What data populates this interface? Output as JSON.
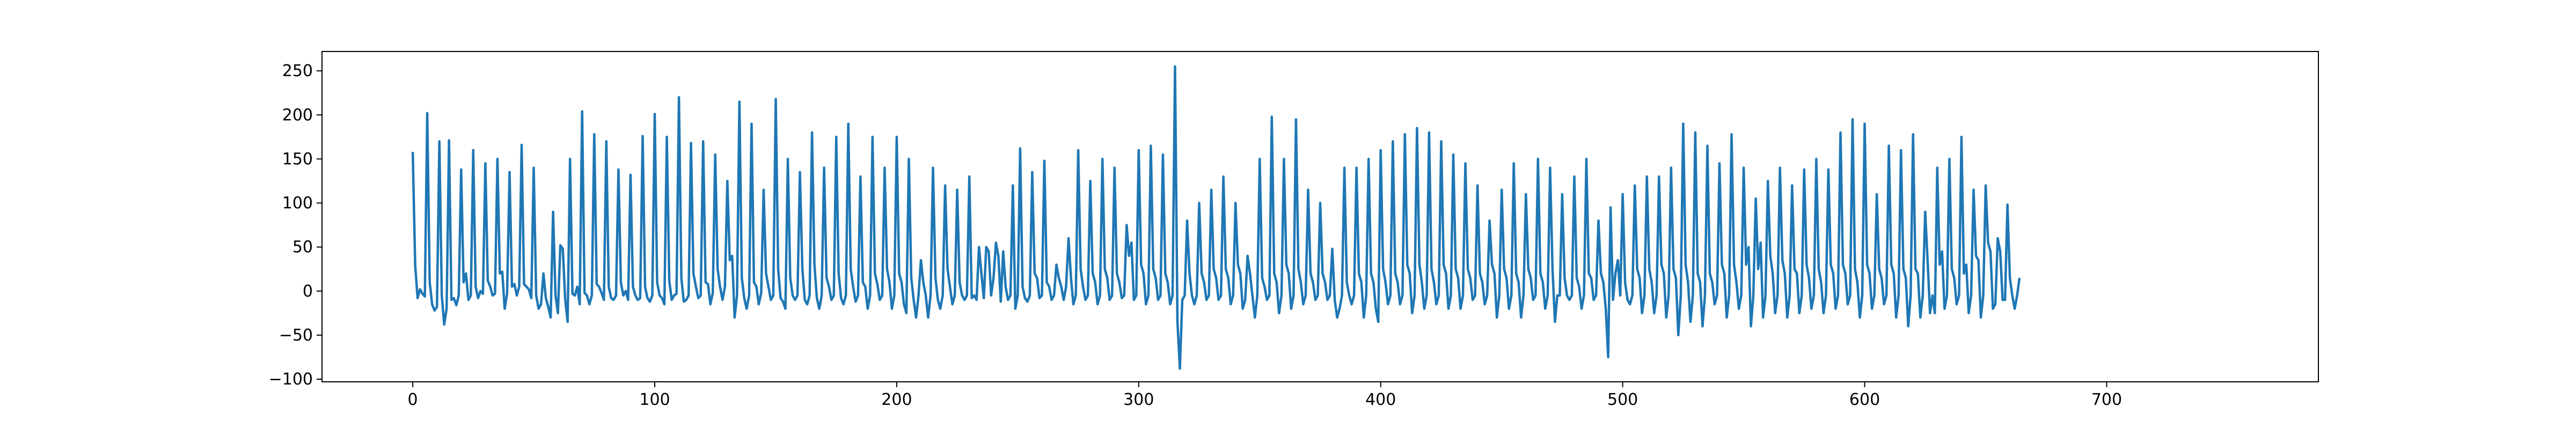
{
  "chart_data": {
    "type": "line",
    "title": "",
    "xlabel": "",
    "ylabel": "",
    "xlim": [
      -37.5,
      787.5
    ],
    "ylim": [
      -103,
      272
    ],
    "xticks": [
      0,
      100,
      200,
      300,
      400,
      500,
      600,
      700
    ],
    "yticks": [
      -100,
      -50,
      0,
      50,
      100,
      150,
      200,
      250
    ],
    "grid": false,
    "legend": "none",
    "colors": {
      "line": "#1f77b4",
      "axes": "#000000",
      "background": "#ffffff"
    },
    "series": [
      {
        "values": [
          158,
          30,
          -8,
          2,
          -3,
          -6,
          202,
          10,
          -15,
          -22,
          -18,
          170,
          -5,
          -38,
          -20,
          171,
          -10,
          -8,
          -16,
          -5,
          138,
          10,
          20,
          -10,
          -5,
          160,
          5,
          -8,
          0,
          -3,
          145,
          12,
          5,
          -5,
          -3,
          150,
          20,
          22,
          -20,
          -3,
          135,
          5,
          8,
          -5,
          5,
          166,
          8,
          5,
          2,
          -8,
          140,
          -5,
          -20,
          -15,
          20,
          -8,
          -18,
          -30,
          90,
          -5,
          -25,
          52,
          48,
          -10,
          -35,
          150,
          -3,
          -5,
          5,
          -15,
          204,
          -2,
          -5,
          -15,
          -5,
          178,
          8,
          5,
          -2,
          -10,
          170,
          5,
          -8,
          -10,
          -5,
          138,
          10,
          -5,
          0,
          -10,
          132,
          5,
          -5,
          -10,
          -8,
          176,
          5,
          -8,
          -12,
          -5,
          201,
          10,
          -5,
          -8,
          -15,
          175,
          12,
          -10,
          -5,
          -3,
          220,
          15,
          -12,
          -10,
          -5,
          168,
          20,
          5,
          -8,
          -5,
          170,
          10,
          8,
          -15,
          -2,
          155,
          25,
          5,
          -10,
          5,
          125,
          35,
          40,
          -30,
          -5,
          215,
          15,
          -8,
          -20,
          -5,
          190,
          10,
          5,
          -15,
          -2,
          115,
          20,
          5,
          -10,
          -5,
          218,
          25,
          -8,
          -12,
          -20,
          150,
          15,
          -5,
          -10,
          -5,
          135,
          25,
          -10,
          -15,
          -5,
          180,
          30,
          -8,
          -20,
          -5,
          140,
          15,
          5,
          -10,
          -5,
          175,
          20,
          -8,
          -15,
          -5,
          190,
          25,
          5,
          -12,
          -5,
          130,
          10,
          5,
          -20,
          -5,
          175,
          20,
          8,
          -10,
          -5,
          140,
          25,
          10,
          -20,
          -5,
          175,
          20,
          10,
          -15,
          -25,
          150,
          15,
          -10,
          -30,
          -5,
          35,
          10,
          -5,
          -30,
          -5,
          140,
          15,
          -10,
          -20,
          -5,
          120,
          25,
          5,
          -15,
          -5,
          115,
          10,
          -5,
          -10,
          -5,
          130,
          -8,
          -5,
          -10,
          50,
          20,
          -8,
          50,
          45,
          -5,
          15,
          55,
          40,
          -12,
          45,
          5,
          -10,
          -5,
          120,
          -20,
          -5,
          162,
          5,
          -8,
          -12,
          -5,
          135,
          20,
          15,
          -8,
          -5,
          148,
          10,
          5,
          -10,
          -5,
          30,
          15,
          5,
          -10,
          5,
          60,
          15,
          -15,
          -5,
          160,
          25,
          5,
          -10,
          -5,
          125,
          20,
          10,
          -15,
          -5,
          150,
          25,
          15,
          -10,
          -5,
          140,
          20,
          10,
          -8,
          -5,
          75,
          40,
          55,
          -10,
          -5,
          160,
          30,
          20,
          -15,
          -5,
          165,
          25,
          15,
          -10,
          -5,
          155,
          20,
          10,
          -15,
          -5,
          255,
          -35,
          -88,
          -10,
          -5,
          80,
          20,
          -5,
          -15,
          -5,
          100,
          20,
          10,
          -10,
          -5,
          115,
          25,
          15,
          -10,
          -5,
          130,
          25,
          15,
          -15,
          -5,
          100,
          30,
          20,
          -20,
          -10,
          40,
          20,
          -5,
          -30,
          -5,
          150,
          15,
          5,
          -10,
          -5,
          198,
          20,
          10,
          -25,
          -5,
          150,
          30,
          20,
          -20,
          -5,
          195,
          25,
          10,
          -15,
          -5,
          115,
          20,
          10,
          -10,
          -5,
          100,
          20,
          10,
          -10,
          -5,
          48,
          -10,
          -30,
          -20,
          -5,
          140,
          10,
          -5,
          -15,
          -5,
          140,
          20,
          10,
          -30,
          -5,
          150,
          20,
          10,
          -20,
          -35,
          160,
          25,
          10,
          -15,
          -5,
          170,
          20,
          10,
          -15,
          -5,
          178,
          30,
          20,
          -25,
          -5,
          185,
          30,
          10,
          -20,
          -5,
          180,
          25,
          10,
          -15,
          -5,
          170,
          30,
          20,
          -20,
          -5,
          155,
          25,
          15,
          -20,
          -5,
          145,
          25,
          15,
          -10,
          -5,
          120,
          20,
          10,
          -15,
          -5,
          80,
          30,
          20,
          -30,
          -5,
          115,
          25,
          15,
          -20,
          -5,
          145,
          20,
          10,
          -30,
          -5,
          110,
          25,
          15,
          -10,
          -5,
          150,
          20,
          10,
          -20,
          -5,
          140,
          25,
          -35,
          -5,
          -5,
          110,
          15,
          -5,
          -10,
          -5,
          130,
          15,
          5,
          -20,
          -5,
          150,
          20,
          15,
          -10,
          -5,
          80,
          20,
          10,
          -20,
          -75,
          95,
          -10,
          20,
          35,
          -5,
          110,
          10,
          -10,
          -15,
          -5,
          120,
          25,
          15,
          -25,
          -5,
          130,
          25,
          10,
          -25,
          -5,
          130,
          30,
          20,
          -30,
          -5,
          140,
          25,
          15,
          -50,
          -5,
          190,
          30,
          10,
          -35,
          -5,
          180,
          20,
          10,
          -40,
          -5,
          165,
          20,
          10,
          -15,
          -5,
          145,
          30,
          20,
          -30,
          -5,
          178,
          30,
          10,
          -20,
          -5,
          140,
          30,
          50,
          -40,
          -5,
          105,
          25,
          55,
          -30,
          -5,
          125,
          40,
          20,
          -25,
          -5,
          140,
          35,
          20,
          -30,
          -5,
          120,
          25,
          20,
          -25,
          -5,
          138,
          30,
          15,
          -20,
          -5,
          150,
          25,
          10,
          -25,
          -5,
          138,
          30,
          20,
          -20,
          -5,
          180,
          30,
          20,
          -15,
          -5,
          195,
          25,
          10,
          -30,
          -5,
          190,
          30,
          20,
          -20,
          -5,
          110,
          25,
          15,
          -15,
          -5,
          165,
          30,
          20,
          -30,
          -5,
          160,
          25,
          15,
          -40,
          -5,
          178,
          25,
          20,
          -30,
          -5,
          90,
          35,
          -25,
          -5,
          -25,
          140,
          30,
          45,
          -20,
          -5,
          150,
          25,
          15,
          -15,
          -5,
          175,
          20,
          30,
          -25,
          -5,
          115,
          40,
          35,
          -30,
          -5,
          120,
          55,
          45,
          -20,
          -15,
          60,
          45,
          -10,
          -10,
          98,
          15,
          -5,
          -20,
          -5,
          15
        ]
      }
    ]
  }
}
